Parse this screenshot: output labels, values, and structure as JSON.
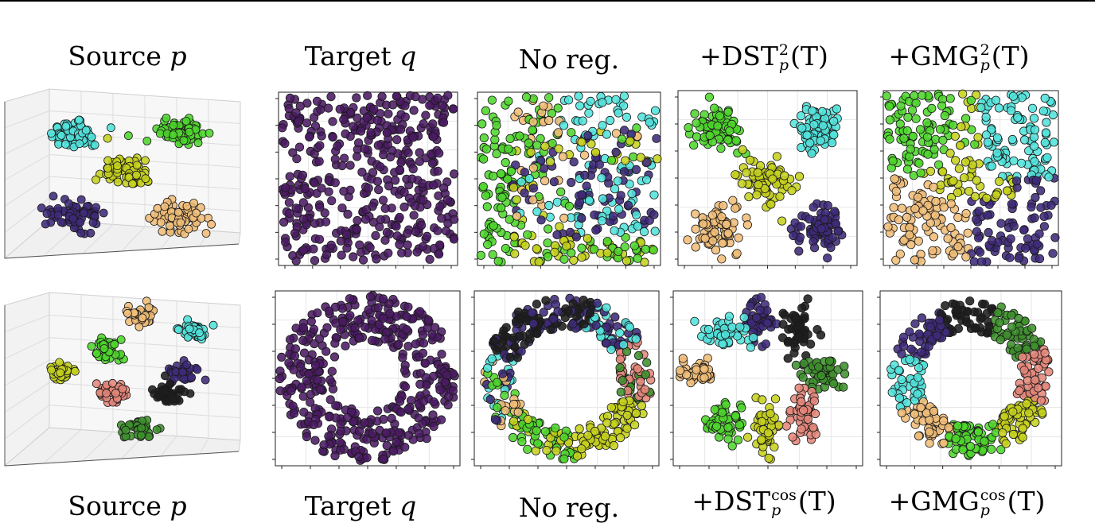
{
  "figure": {
    "rows": [
      {
        "titles": {
          "source": {
            "text": "Source ",
            "var": "p"
          },
          "target": {
            "text": "Target ",
            "var": "q"
          },
          "noreg": {
            "text": "No reg."
          },
          "dst": {
            "prefix": "+DST",
            "sup": "2",
            "sub": "p",
            "arg": "(T)"
          },
          "gmg": {
            "prefix": "+GMG",
            "sup": "2",
            "sub": "p",
            "arg": "(T)"
          }
        },
        "target_shape": "square",
        "source_clusters": [
          "cyan",
          "green",
          "yellow",
          "purple",
          "orange"
        ],
        "dst_clusters": [
          "green",
          "cyan",
          "yellow",
          "orange",
          "purple"
        ],
        "gmg_clusters": [
          "green",
          "cyan",
          "yellow",
          "orange",
          "purple"
        ]
      },
      {
        "titles": {
          "source": {
            "text": "Source ",
            "var": "p"
          },
          "target": {
            "text": "Target ",
            "var": "q"
          },
          "noreg": {
            "text": "No reg."
          },
          "dst": {
            "prefix": "+DST",
            "sup": "cos",
            "sub": "p",
            "arg": "(T)"
          },
          "gmg": {
            "prefix": "+GMG",
            "sup": "cos",
            "sub": "p",
            "arg": "(T)"
          }
        },
        "target_shape": "annulus",
        "source_clusters": [
          "orange",
          "cyan",
          "green",
          "yellow",
          "purple",
          "salmon",
          "black",
          "darkgreen"
        ],
        "dst_clusters": [
          "purple",
          "black",
          "cyan",
          "orange",
          "darkgreen",
          "green",
          "salmon",
          "yellow"
        ],
        "gmg_clusters": [
          "black",
          "darkgreen",
          "salmon",
          "yellow",
          "green",
          "orange",
          "cyan",
          "purple"
        ]
      }
    ],
    "colors": {
      "purple": "#3f2a7a",
      "target": "#4a1a63",
      "cyan": "#52e3dc",
      "green": "#4ed62c",
      "yellow": "#c6d21d",
      "orange": "#f0bd78",
      "salmon": "#e5867a",
      "black": "#1e1e1e",
      "darkgreen": "#3d8f2c"
    }
  }
}
